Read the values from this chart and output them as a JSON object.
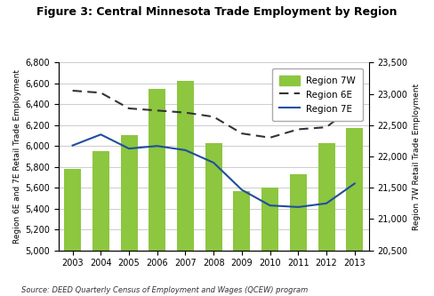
{
  "title": "Figure 3: Central Minnesota Trade Employment by Region",
  "years": [
    2003,
    2004,
    2005,
    2006,
    2007,
    2008,
    2009,
    2010,
    2011,
    2012,
    2013
  ],
  "region_7W": [
    5780,
    5950,
    6100,
    6550,
    6625,
    6025,
    5570,
    5600,
    5730,
    6030,
    6170
  ],
  "region_6E": [
    6530,
    6510,
    6360,
    6340,
    6320,
    6280,
    6120,
    6080,
    6160,
    6180,
    6390
  ],
  "region_7E": [
    6005,
    6110,
    5975,
    6000,
    5960,
    5840,
    5580,
    5430,
    5415,
    5450,
    5640
  ],
  "bar_color": "#8DC63F",
  "line_6E_color": "#333333",
  "line_7E_color": "#1F4E9E",
  "ylabel_left": "Region 6E and 7E Retail Trade Employment",
  "ylabel_right": "Region 7W Retail Trade Employment",
  "ylim_left": [
    5000,
    6800
  ],
  "ylim_right": [
    20500,
    23500
  ],
  "yticks_left": [
    5000,
    5200,
    5400,
    5600,
    5800,
    6000,
    6200,
    6400,
    6600,
    6800
  ],
  "yticks_right": [
    20500,
    21000,
    21500,
    22000,
    22500,
    23000,
    23500
  ],
  "source": "Source: DEED Quarterly Census of Employment and Wages (QCEW) program",
  "legend_labels": [
    "Region 7W",
    "Region 6E",
    "Region 7E"
  ],
  "background_color": "#ffffff",
  "grid_color": "#cccccc"
}
